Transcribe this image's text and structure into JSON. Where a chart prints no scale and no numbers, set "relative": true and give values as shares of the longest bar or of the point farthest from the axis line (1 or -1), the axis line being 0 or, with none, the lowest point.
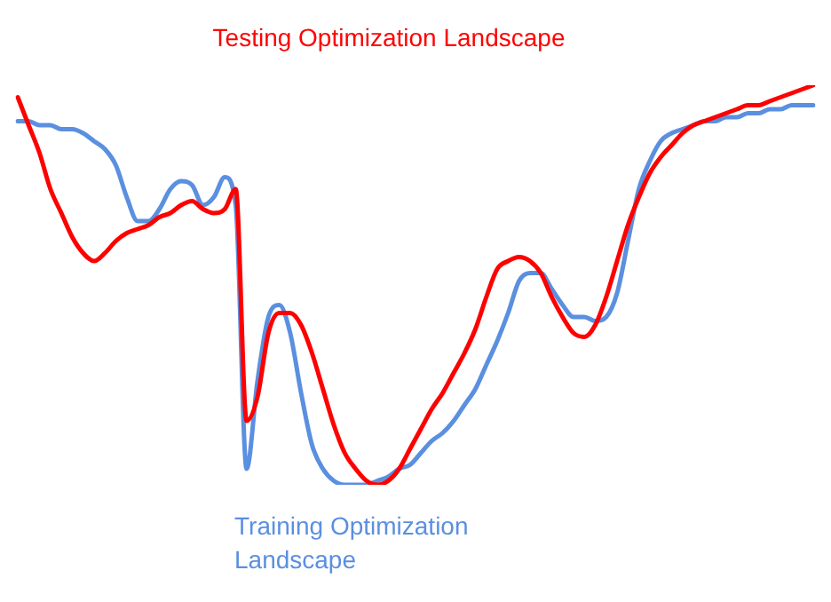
{
  "chart_data": {
    "type": "line",
    "relative": true,
    "legend": false,
    "marker": "none",
    "line_style": "solid",
    "categories": [
      null,
      null,
      null,
      null,
      null,
      null,
      null,
      null,
      null,
      null,
      null,
      null,
      null,
      null,
      null,
      null,
      null,
      null,
      null,
      null,
      null,
      null,
      null,
      null,
      null,
      null,
      null,
      null,
      null,
      null,
      null,
      null,
      null,
      null,
      null,
      null,
      null,
      null,
      null,
      null,
      null,
      null,
      null,
      null,
      null,
      null,
      null,
      null,
      null,
      null,
      null,
      null,
      null,
      null,
      null,
      null,
      null,
      null,
      null,
      null,
      null,
      null,
      null,
      null,
      null,
      null,
      null,
      null,
      null,
      null,
      null,
      null,
      null,
      null
    ],
    "series": [
      {
        "name": "Testing Optimization Landscape",
        "color": "#ff0000",
        "values": [
          0.97,
          0.9,
          0.83,
          0.74,
          0.68,
          0.62,
          0.58,
          0.56,
          0.58,
          0.61,
          0.63,
          0.64,
          0.65,
          0.67,
          0.68,
          0.7,
          0.71,
          0.69,
          0.68,
          0.69,
          0.74,
          0.16,
          0.22,
          0.38,
          0.43,
          0.43,
          0.4,
          0.33,
          0.24,
          0.15,
          0.08,
          0.04,
          0.01,
          0,
          0.01,
          0.04,
          0.09,
          0.14,
          0.19,
          0.23,
          0.28,
          0.33,
          0.39,
          0.47,
          0.54,
          0.56,
          0.57,
          0.56,
          0.53,
          0.47,
          0.42,
          0.38,
          0.37,
          0.4,
          0.47,
          0.56,
          0.65,
          0.72,
          0.78,
          0.82,
          0.85,
          0.88,
          0.9,
          0.91,
          0.92,
          0.93,
          0.94,
          0.95,
          0.95,
          0.96,
          0.97,
          0.98,
          0.99,
          1
        ]
      },
      {
        "name": "Training Optimization Landscape",
        "color": "#5b8fe0",
        "values": [
          0.91,
          0.91,
          0.9,
          0.9,
          0.89,
          0.89,
          0.88,
          0.86,
          0.84,
          0.8,
          0.72,
          0.66,
          0.66,
          0.69,
          0.74,
          0.76,
          0.75,
          0.7,
          0.72,
          0.77,
          0.7,
          0.04,
          0.26,
          0.42,
          0.45,
          0.38,
          0.23,
          0.1,
          0.04,
          0.01,
          0,
          0,
          0,
          0.01,
          0.02,
          0.04,
          0.05,
          0.08,
          0.11,
          0.13,
          0.16,
          0.2,
          0.24,
          0.3,
          0.36,
          0.43,
          0.51,
          0.53,
          0.53,
          0.49,
          0.45,
          0.42,
          0.42,
          0.41,
          0.42,
          0.48,
          0.61,
          0.74,
          0.81,
          0.86,
          0.88,
          0.89,
          0.9,
          0.91,
          0.91,
          0.92,
          0.92,
          0.93,
          0.93,
          0.94,
          0.94,
          0.95,
          0.95,
          0.95
        ]
      }
    ]
  }
}
